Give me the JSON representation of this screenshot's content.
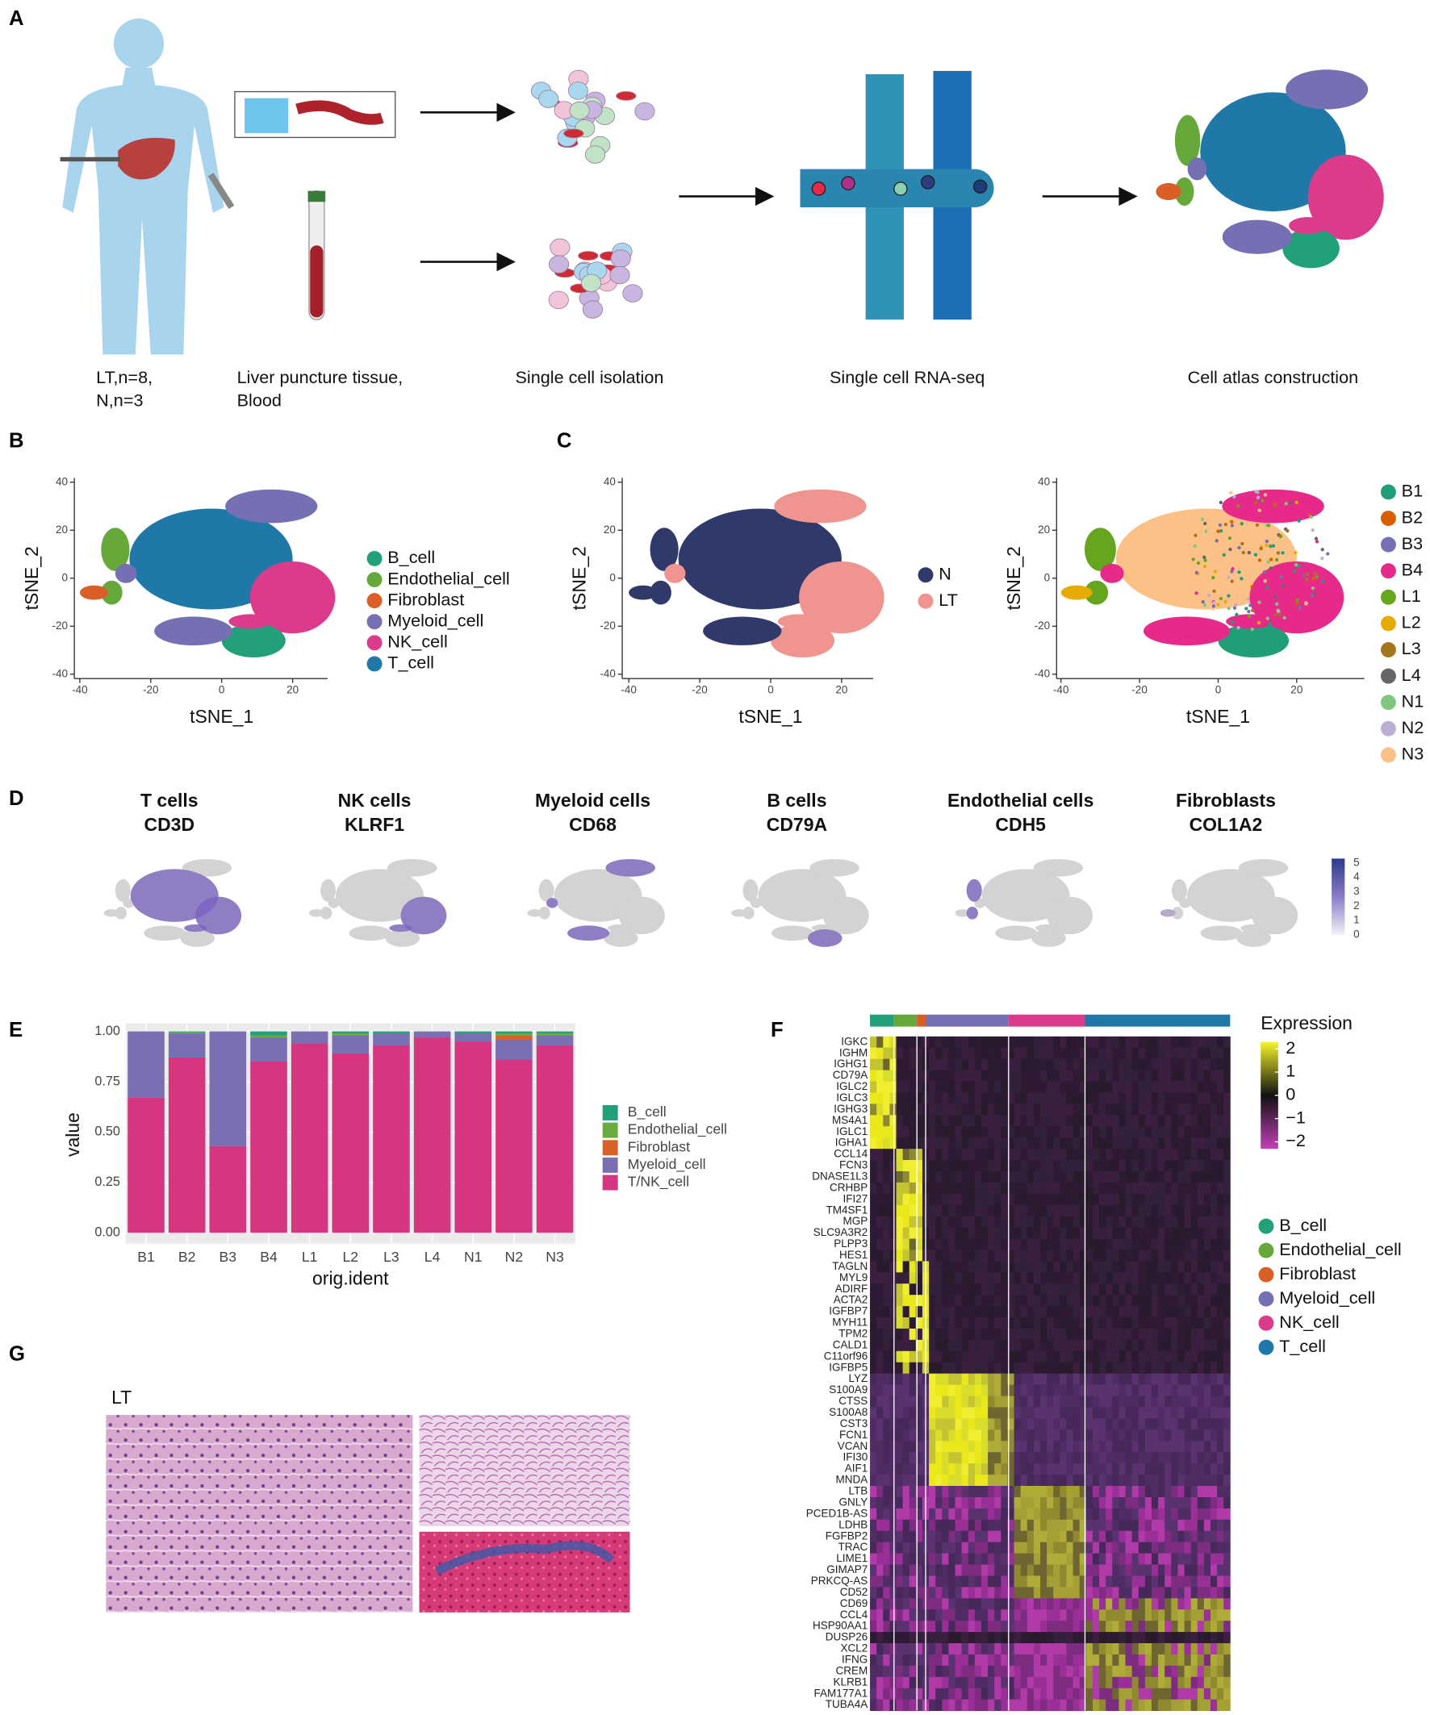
{
  "panel_labels": [
    "A",
    "B",
    "C",
    "D",
    "E",
    "F",
    "G"
  ],
  "A": {
    "steps": [
      [
        "LT,n=8,",
        "N,n=3"
      ],
      [
        "Liver puncture tissue,",
        "Blood"
      ],
      [
        "Single cell isolation"
      ],
      [
        "Single cell RNA-seq"
      ],
      [
        "Cell atlas construction"
      ]
    ]
  },
  "B": {
    "xlabel": "tSNE_1",
    "ylabel": "tSNE_2",
    "xticks": [
      -40,
      -20,
      0,
      20
    ],
    "yticks": [
      -40,
      -20,
      0,
      20,
      40
    ],
    "legend": [
      {
        "name": "B_cell",
        "color": "#22a079"
      },
      {
        "name": "Endothelial_cell",
        "color": "#67a83b"
      },
      {
        "name": "Fibroblast",
        "color": "#d95f27"
      },
      {
        "name": "Myeloid_cell",
        "color": "#7570b3"
      },
      {
        "name": "NK_cell",
        "color": "#dc3a8a"
      },
      {
        "name": "T_cell",
        "color": "#1f78a8"
      }
    ]
  },
  "C": {
    "xlabel": "tSNE_1",
    "ylabel": "tSNE_2",
    "xticks": [
      -40,
      -20,
      0,
      20
    ],
    "yticks": [
      -40,
      -20,
      0,
      20,
      40
    ],
    "left_legend": [
      {
        "name": "N",
        "color": "#2f3a6b"
      },
      {
        "name": "LT",
        "color": "#ef948f"
      }
    ],
    "right_legend": [
      {
        "name": "B1",
        "color": "#1f9e77"
      },
      {
        "name": "B2",
        "color": "#d95f02"
      },
      {
        "name": "B3",
        "color": "#7570b3"
      },
      {
        "name": "B4",
        "color": "#e7298a"
      },
      {
        "name": "L1",
        "color": "#66a61e"
      },
      {
        "name": "L2",
        "color": "#e6ab02"
      },
      {
        "name": "L3",
        "color": "#a6761d"
      },
      {
        "name": "L4",
        "color": "#666666"
      },
      {
        "name": "N1",
        "color": "#7fc97f"
      },
      {
        "name": "N2",
        "color": "#beaed4"
      },
      {
        "name": "N3",
        "color": "#fdc086"
      }
    ]
  },
  "D": {
    "panels": [
      [
        "T cells",
        "CD3D"
      ],
      [
        "NK cells",
        "KLRF1"
      ],
      [
        "Myeloid cells",
        "CD68"
      ],
      [
        "B cells",
        "CD79A"
      ],
      [
        "Endothelial cells",
        "CDH5"
      ],
      [
        "Fibroblasts",
        "COL1A2"
      ]
    ],
    "scale_ticks": [
      5,
      4,
      3,
      2,
      1,
      0
    ]
  },
  "E": {
    "type": "bar",
    "stacked": true,
    "xlabel": "orig.ident",
    "ylabel": "value",
    "categories": [
      "B1",
      "B2",
      "B3",
      "B4",
      "L1",
      "L2",
      "L3",
      "L4",
      "N1",
      "N2",
      "N3"
    ],
    "series": [
      {
        "name": "T/NK_cell",
        "color": "#d6357f",
        "values": [
          0.67,
          0.87,
          0.43,
          0.85,
          0.94,
          0.89,
          0.93,
          0.97,
          0.95,
          0.86,
          0.93
        ]
      },
      {
        "name": "Myeloid_cell",
        "color": "#7b6fb3",
        "values": [
          0.33,
          0.12,
          0.57,
          0.12,
          0.06,
          0.09,
          0.06,
          0.03,
          0.04,
          0.1,
          0.05
        ]
      },
      {
        "name": "Fibroblast",
        "color": "#d9622b",
        "values": [
          0,
          0,
          0,
          0,
          0,
          0,
          0,
          0,
          0,
          0.02,
          0
        ]
      },
      {
        "name": "Endothelial_cell",
        "color": "#6aab3e",
        "values": [
          0,
          0.005,
          0,
          0.01,
          0,
          0.01,
          0,
          0,
          0,
          0.01,
          0.01
        ]
      },
      {
        "name": "B_cell",
        "color": "#21a07a",
        "values": [
          0,
          0.005,
          0,
          0.02,
          0,
          0.01,
          0.01,
          0,
          0.01,
          0.01,
          0.01
        ]
      }
    ],
    "legend_order": [
      "B_cell",
      "Endothelial_cell",
      "Fibroblast",
      "Myeloid_cell",
      "T/NK_cell"
    ],
    "ylim": [
      0,
      1.04
    ],
    "yticks": [
      {
        "value": 0,
        "label": "0.00"
      },
      {
        "value": 0.25,
        "label": "0.25"
      },
      {
        "value": 0.5,
        "label": "0.50"
      },
      {
        "value": 0.75,
        "label": "0.75"
      },
      {
        "value": 1,
        "label": "1.00"
      }
    ],
    "grid": true
  },
  "F": {
    "legend_title": "Expression",
    "scale_ticks": [
      {
        "value": 2,
        "label": "2"
      },
      {
        "value": 1,
        "label": "1"
      },
      {
        "value": 0,
        "label": "0"
      },
      {
        "value": -1,
        "label": "−1"
      },
      {
        "value": -2,
        "label": "−2"
      }
    ],
    "genes": [
      "IGKC",
      "IGHM",
      "IGHG1",
      "CD79A",
      "IGLC2",
      "IGLC3",
      "IGHG3",
      "MS4A1",
      "IGLC1",
      "IGHA1",
      "CCL14",
      "FCN3",
      "DNASE1L3",
      "CRHBP",
      "IFI27",
      "TM4SF1",
      "MGP",
      "SLC9A3R2",
      "PLPP3",
      "HES1",
      "TAGLN",
      "MYL9",
      "ADIRF",
      "ACTA2",
      "IGFBP7",
      "MYH11",
      "TPM2",
      "CALD1",
      "C11orf96",
      "IGFBP5",
      "LYZ",
      "S100A9",
      "CTSS",
      "S100A8",
      "CST3",
      "FCN1",
      "VCAN",
      "IFI30",
      "AIF1",
      "MNDA",
      "LTB",
      "GNLY",
      "PCED1B-AS",
      "LDHB",
      "FGFBP2",
      "TRAC",
      "LIME1",
      "GIMAP7",
      "PRKCQ-AS",
      "CD52",
      "CD69",
      "CCL4",
      "HSP90AA1",
      "DUSP26",
      "XCL2",
      "IFNG",
      "CREM",
      "KLRB1",
      "FAM177A1",
      "TUBA4A"
    ],
    "legend": [
      {
        "name": "B_cell",
        "color": "#22a079"
      },
      {
        "name": "Endothelial_cell",
        "color": "#67a83b"
      },
      {
        "name": "Fibroblast",
        "color": "#d95f27"
      },
      {
        "name": "Myeloid_cell",
        "color": "#7570b3"
      },
      {
        "name": "NK_cell",
        "color": "#dc3a8a"
      },
      {
        "name": "T_cell",
        "color": "#1f78a8"
      }
    ]
  },
  "G": {
    "label": "LT"
  }
}
